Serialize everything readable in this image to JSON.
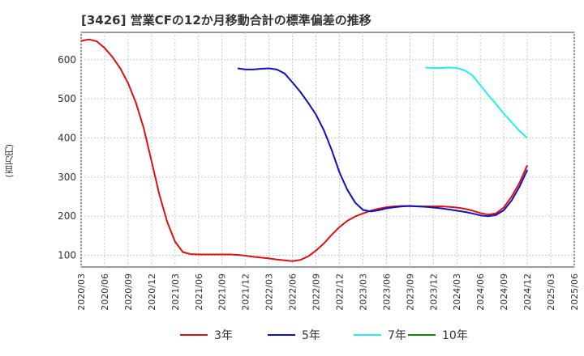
{
  "chart_data": {
    "type": "line",
    "title": "[3426]  営業CFの12か月移動合計の標準偏差の推移",
    "ylabel": "(百万円)",
    "xlabel": "",
    "ylim": [
      70,
      670
    ],
    "yticks": [
      100,
      200,
      300,
      400,
      500,
      600
    ],
    "xticks": [
      "2020/03",
      "2020/06",
      "2020/09",
      "2020/12",
      "2021/03",
      "2021/06",
      "2021/09",
      "2021/12",
      "2022/03",
      "2022/06",
      "2022/09",
      "2022/12",
      "2023/03",
      "2023/06",
      "2023/09",
      "2023/12",
      "2024/03",
      "2024/06",
      "2024/09",
      "2024/12",
      "2025/03",
      "2025/06"
    ],
    "grid": true,
    "legend_position": "bottom",
    "series": [
      {
        "name": "3年",
        "color": "#dd1111",
        "x": [
          "2020/03",
          "2020/04",
          "2020/05",
          "2020/06",
          "2020/07",
          "2020/08",
          "2020/09",
          "2020/10",
          "2020/11",
          "2020/12",
          "2021/01",
          "2021/02",
          "2021/03",
          "2021/04",
          "2021/05",
          "2021/06",
          "2021/07",
          "2021/08",
          "2021/09",
          "2021/10",
          "2021/11",
          "2021/12",
          "2022/01",
          "2022/02",
          "2022/03",
          "2022/04",
          "2022/05",
          "2022/06",
          "2022/07",
          "2022/08",
          "2022/09",
          "2022/10",
          "2022/11",
          "2022/12",
          "2023/01",
          "2023/02",
          "2023/03",
          "2023/04",
          "2023/05",
          "2023/06",
          "2023/07",
          "2023/08",
          "2023/09",
          "2023/10",
          "2023/11",
          "2023/12",
          "2024/01",
          "2024/02",
          "2024/03",
          "2024/04",
          "2024/05",
          "2024/06",
          "2024/07",
          "2024/08",
          "2024/09",
          "2024/10",
          "2024/11",
          "2024/12"
        ],
        "values": [
          648,
          652,
          647,
          630,
          607,
          578,
          540,
          490,
          425,
          340,
          255,
          185,
          135,
          108,
          103,
          102,
          102,
          102,
          102,
          102,
          101,
          99,
          96,
          94,
          92,
          89,
          87,
          85,
          88,
          97,
          112,
          130,
          152,
          172,
          188,
          199,
          207,
          214,
          219,
          223,
          225,
          226,
          226,
          225,
          225,
          225,
          225,
          224,
          222,
          219,
          214,
          208,
          204,
          207,
          222,
          250,
          285,
          330
        ]
      },
      {
        "name": "5年",
        "color": "#1111bb",
        "x": [
          "2021/11",
          "2021/12",
          "2022/01",
          "2022/02",
          "2022/03",
          "2022/04",
          "2022/05",
          "2022/06",
          "2022/07",
          "2022/08",
          "2022/09",
          "2022/10",
          "2022/11",
          "2022/12",
          "2023/01",
          "2023/02",
          "2023/03",
          "2023/04",
          "2023/05",
          "2023/06",
          "2023/07",
          "2023/08",
          "2023/09",
          "2023/10",
          "2023/11",
          "2023/12",
          "2024/01",
          "2024/02",
          "2024/03",
          "2024/04",
          "2024/05",
          "2024/06",
          "2024/07",
          "2024/08",
          "2024/09",
          "2024/10",
          "2024/11",
          "2024/12"
        ],
        "values": [
          578,
          575,
          575,
          577,
          578,
          575,
          565,
          542,
          518,
          490,
          460,
          420,
          370,
          312,
          268,
          235,
          216,
          212,
          215,
          220,
          223,
          225,
          226,
          225,
          224,
          222,
          220,
          217,
          214,
          211,
          207,
          202,
          200,
          203,
          215,
          240,
          275,
          318
        ]
      },
      {
        "name": "7年",
        "color": "#22eeee",
        "x": [
          "2023/11",
          "2023/12",
          "2024/01",
          "2024/02",
          "2024/03",
          "2024/04",
          "2024/05",
          "2024/06",
          "2024/07",
          "2024/08",
          "2024/09",
          "2024/10",
          "2024/11",
          "2024/12"
        ],
        "values": [
          580,
          579,
          579,
          580,
          579,
          573,
          560,
          535,
          510,
          487,
          462,
          440,
          418,
          400
        ]
      },
      {
        "name": "10年",
        "color": "#118811",
        "x": [],
        "values": []
      }
    ]
  }
}
